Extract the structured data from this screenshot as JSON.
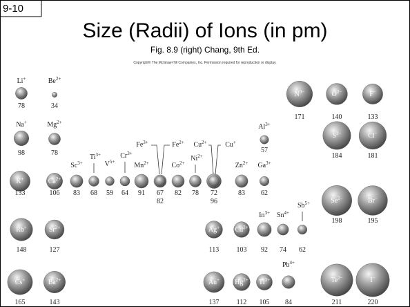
{
  "slide_number": "9-10",
  "title": "Size (Radii) of Ions (in pm)",
  "subtitle": "Fig. 8.9 (right) Chang, 9th Ed.",
  "copyright": "Copyright© The McGraw-Hill Companies, Inc. Permission required for reproduction or display.",
  "ions": [
    {
      "symbol": "Li",
      "charge": "+",
      "radius": 78
    },
    {
      "symbol": "Be",
      "charge": "2+",
      "radius": 34
    },
    {
      "symbol": "N",
      "charge": "3−",
      "radius": 171
    },
    {
      "symbol": "O",
      "charge": "2−",
      "radius": 140
    },
    {
      "symbol": "F",
      "charge": "−",
      "radius": 133
    },
    {
      "symbol": "Na",
      "charge": "+",
      "radius": 98
    },
    {
      "symbol": "Mg",
      "charge": "2+",
      "radius": 78
    },
    {
      "symbol": "Al",
      "charge": "3+",
      "radius": 57
    },
    {
      "symbol": "S",
      "charge": "2−",
      "radius": 184
    },
    {
      "symbol": "Cl",
      "charge": "−",
      "radius": 181
    },
    {
      "symbol": "K",
      "charge": "+",
      "radius": 133
    },
    {
      "symbol": "Ca",
      "charge": "2+",
      "radius": 106
    },
    {
      "symbol": "Sc",
      "charge": "3+",
      "radius": 83
    },
    {
      "symbol": "Ti",
      "charge": "3+",
      "radius": 68
    },
    {
      "symbol": "V",
      "charge": "5+",
      "radius": 59
    },
    {
      "symbol": "Cr",
      "charge": "3+",
      "radius": 64
    },
    {
      "symbol": "Mn",
      "charge": "2+",
      "radius": 91
    },
    {
      "symbol": "Fe",
      "charge": "3+",
      "radius": 67
    },
    {
      "symbol": "Fe",
      "charge": "2+",
      "radius": 82
    },
    {
      "symbol": "Co",
      "charge": "2+",
      "radius": 82
    },
    {
      "symbol": "Ni",
      "charge": "2+",
      "radius": 78
    },
    {
      "symbol": "Cu",
      "charge": "2+",
      "radius": 72
    },
    {
      "symbol": "Cu",
      "charge": "+",
      "radius": 96
    },
    {
      "symbol": "Zn",
      "charge": "2+",
      "radius": 83
    },
    {
      "symbol": "Ga",
      "charge": "3+",
      "radius": 62
    },
    {
      "symbol": "Se",
      "charge": "2−",
      "radius": 198
    },
    {
      "symbol": "Br",
      "charge": "−",
      "radius": 195
    },
    {
      "symbol": "Rb",
      "charge": "+",
      "radius": 148
    },
    {
      "symbol": "Sr",
      "charge": "2+",
      "radius": 127
    },
    {
      "symbol": "Ag",
      "charge": "+",
      "radius": 113
    },
    {
      "symbol": "Cd",
      "charge": "2+",
      "radius": 103
    },
    {
      "symbol": "In",
      "charge": "3+",
      "radius": 92
    },
    {
      "symbol": "Sn",
      "charge": "4+",
      "radius": 74
    },
    {
      "symbol": "Sb",
      "charge": "5+",
      "radius": 62
    },
    {
      "symbol": "Cs",
      "charge": "+",
      "radius": 165
    },
    {
      "symbol": "Ba",
      "charge": "2+",
      "radius": 143
    },
    {
      "symbol": "Au",
      "charge": "+",
      "radius": 137
    },
    {
      "symbol": "Hg",
      "charge": "2+",
      "radius": 112
    },
    {
      "symbol": "Tl",
      "charge": "3+",
      "radius": 105
    },
    {
      "symbol": "Pb",
      "charge": "4+",
      "radius": 84
    },
    {
      "symbol": "Te",
      "charge": "2−",
      "radius": 211
    },
    {
      "symbol": "I",
      "charge": "−",
      "radius": 220
    }
  ]
}
